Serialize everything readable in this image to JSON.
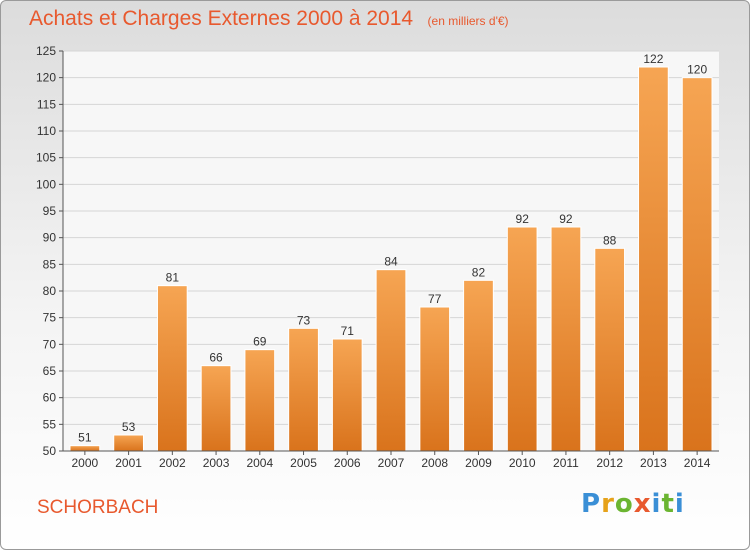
{
  "title": "Achats et Charges Externes 2000 à 2014",
  "unit": "(en milliers d'€)",
  "commune": "SCHORBACH",
  "brand": "Proxiti",
  "colors": {
    "accent": "#e8592e",
    "bar_top": "#f6a553",
    "bar_bottom": "#d9731c"
  },
  "chart_data": {
    "type": "bar",
    "title": "Achats et Charges Externes 2000 à 2014",
    "subtitle": "(en milliers d'€)",
    "xlabel": "",
    "ylabel": "",
    "categories": [
      "2000",
      "2001",
      "2002",
      "2003",
      "2004",
      "2005",
      "2006",
      "2007",
      "2008",
      "2009",
      "2010",
      "2011",
      "2012",
      "2013",
      "2014"
    ],
    "values": [
      51,
      53,
      81,
      66,
      69,
      73,
      71,
      84,
      77,
      82,
      92,
      92,
      88,
      122,
      120
    ],
    "ylim": [
      50,
      125
    ],
    "yticks": [
      50,
      55,
      60,
      65,
      70,
      75,
      80,
      85,
      90,
      95,
      100,
      105,
      110,
      115,
      120,
      125
    ],
    "grid": true,
    "legend": "none"
  }
}
